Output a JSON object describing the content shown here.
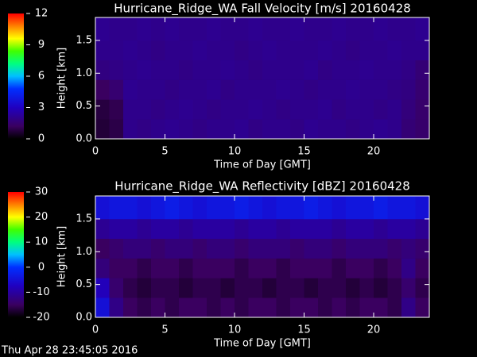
{
  "chart_data": [
    {
      "type": "heatmap",
      "title": "Hurricane_Ridge_WA Fall Velocity [m/s] 20160428",
      "xlabel": "Time of Day [GMT]",
      "ylabel": "Height [km]",
      "xlim": [
        0,
        24
      ],
      "xticks": [
        0,
        5,
        10,
        15,
        20
      ],
      "ylim": [
        0,
        1.85
      ],
      "yticks": [
        {
          "value": 0,
          "label": "0.0"
        },
        {
          "value": 0.5,
          "label": "0.5"
        },
        {
          "value": 1,
          "label": "1.0"
        },
        {
          "value": 1.5,
          "label": "1.5"
        }
      ],
      "clim": [
        0,
        12
      ],
      "cticks": [
        0,
        3,
        6,
        9,
        12
      ],
      "colormap": [
        {
          "at": 0,
          "color": "#000000"
        },
        {
          "at": 0.1,
          "color": "#3a0060"
        },
        {
          "at": 0.25,
          "color": "#2000c0"
        },
        {
          "at": 0.4,
          "color": "#0030ff"
        },
        {
          "at": 0.5,
          "color": "#00c0ff"
        },
        {
          "at": 0.6,
          "color": "#00ff80"
        },
        {
          "at": 0.7,
          "color": "#40ff00"
        },
        {
          "at": 0.8,
          "color": "#ffff00"
        },
        {
          "at": 0.9,
          "color": "#ff8000"
        },
        {
          "at": 1,
          "color": "#ff0000"
        }
      ],
      "x_edges": [
        0,
        1,
        2,
        3,
        4,
        5,
        6,
        7,
        8,
        9,
        10,
        11,
        12,
        13,
        14,
        15,
        16,
        17,
        18,
        19,
        20,
        21,
        22,
        23,
        24
      ],
      "y_edges": [
        0,
        0.3,
        0.6,
        0.9,
        1.2,
        1.5,
        1.85
      ],
      "z": [
        [
          0.7,
          0.9,
          2.0,
          1.9,
          2.0,
          2.1,
          2.0,
          1.9,
          2.0,
          2.0,
          2.1,
          1.9,
          2.0,
          2.0,
          1.9,
          2.1,
          2.0,
          2.0,
          1.9,
          2.0,
          2.1,
          2.0,
          1.6,
          1.4
        ],
        [
          0.8,
          1.0,
          2.0,
          2.0,
          1.9,
          2.0,
          2.1,
          2.0,
          1.9,
          2.0,
          2.0,
          2.1,
          2.0,
          1.9,
          2.0,
          2.0,
          2.1,
          1.9,
          2.0,
          2.0,
          1.9,
          2.0,
          1.7,
          1.4
        ],
        [
          1.2,
          1.5,
          2.1,
          2.0,
          2.0,
          1.9,
          2.0,
          2.0,
          2.1,
          1.9,
          2.0,
          2.0,
          2.0,
          2.1,
          2.0,
          1.9,
          2.0,
          2.0,
          2.1,
          2.0,
          2.0,
          1.9,
          1.8,
          1.5
        ],
        [
          1.8,
          1.9,
          2.0,
          2.1,
          2.0,
          2.0,
          1.9,
          2.0,
          2.0,
          2.1,
          2.0,
          1.9,
          2.0,
          2.0,
          2.0,
          2.1,
          1.9,
          2.0,
          2.0,
          2.1,
          2.0,
          2.0,
          1.9,
          1.6
        ],
        [
          2.0,
          2.0,
          2.1,
          2.0,
          1.9,
          2.0,
          2.0,
          2.1,
          2.0,
          2.0,
          1.9,
          2.0,
          2.1,
          2.0,
          2.0,
          2.0,
          2.1,
          2.0,
          1.9,
          2.0,
          2.0,
          2.1,
          2.0,
          2.0
        ],
        [
          2.1,
          2.0,
          2.0,
          2.1,
          2.0,
          2.1,
          2.0,
          2.0,
          2.1,
          2.0,
          2.0,
          2.1,
          2.0,
          2.0,
          2.1,
          2.0,
          2.0,
          2.1,
          2.0,
          2.0,
          2.1,
          2.0,
          2.0,
          2.1
        ]
      ]
    },
    {
      "type": "heatmap",
      "title": "Hurricane_Ridge_WA Reflectivity [dBZ] 20160428",
      "xlabel": "Time of Day [GMT]",
      "ylabel": "Height [km]",
      "xlim": [
        0,
        24
      ],
      "xticks": [
        0,
        5,
        10,
        15,
        20
      ],
      "ylim": [
        0,
        1.85
      ],
      "yticks": [
        {
          "value": 0,
          "label": "0.0"
        },
        {
          "value": 0.5,
          "label": "0.5"
        },
        {
          "value": 1,
          "label": "1.0"
        },
        {
          "value": 1.5,
          "label": "1.5"
        }
      ],
      "clim": [
        -20,
        30
      ],
      "cticks": [
        -20,
        -10,
        0,
        10,
        20,
        30
      ],
      "colormap": [
        {
          "at": 0,
          "color": "#000000"
        },
        {
          "at": 0.1,
          "color": "#3a0060"
        },
        {
          "at": 0.25,
          "color": "#2000c0"
        },
        {
          "at": 0.4,
          "color": "#0030ff"
        },
        {
          "at": 0.5,
          "color": "#00c0ff"
        },
        {
          "at": 0.6,
          "color": "#00ff80"
        },
        {
          "at": 0.7,
          "color": "#40ff00"
        },
        {
          "at": 0.8,
          "color": "#ffff00"
        },
        {
          "at": 0.9,
          "color": "#ff8000"
        },
        {
          "at": 1,
          "color": "#ff0000"
        }
      ],
      "x_edges": [
        0,
        1,
        2,
        3,
        4,
        5,
        6,
        7,
        8,
        9,
        10,
        11,
        12,
        13,
        14,
        15,
        16,
        17,
        18,
        19,
        20,
        21,
        22,
        23,
        24
      ],
      "y_edges": [
        0,
        0.3,
        0.6,
        0.9,
        1.2,
        1.5,
        1.85
      ],
      "z": [
        [
          -5,
          -12,
          -15,
          -16,
          -15,
          -16,
          -15,
          -15,
          -16,
          -15,
          -16,
          -15,
          -15,
          -16,
          -15,
          -15,
          -16,
          -15,
          -16,
          -15,
          -15,
          -16,
          -12,
          -15
        ],
        [
          -8,
          -14,
          -16,
          -17,
          -16,
          -16,
          -17,
          -16,
          -16,
          -17,
          -16,
          -16,
          -17,
          -16,
          -16,
          -17,
          -16,
          -16,
          -17,
          -16,
          -17,
          -16,
          -14,
          -16
        ],
        [
          -13,
          -15,
          -15,
          -16,
          -15,
          -15,
          -16,
          -15,
          -15,
          -15,
          -16,
          -15,
          -15,
          -16,
          -15,
          -15,
          -15,
          -16,
          -15,
          -15,
          -16,
          -15,
          -12,
          -15
        ],
        [
          -15,
          -14,
          -13,
          -13,
          -14,
          -13,
          -13,
          -14,
          -13,
          -13,
          -14,
          -13,
          -13,
          -13,
          -14,
          -13,
          -13,
          -14,
          -13,
          -13,
          -13,
          -14,
          -13,
          -14
        ],
        [
          -11,
          -10,
          -10,
          -11,
          -10,
          -10,
          -11,
          -10,
          -10,
          -10,
          -11,
          -10,
          -10,
          -11,
          -10,
          -10,
          -10,
          -11,
          -10,
          -10,
          -11,
          -10,
          -10,
          -11
        ],
        [
          -5,
          -4,
          -4,
          -5,
          -4,
          -3,
          -4,
          -5,
          -4,
          -4,
          -3,
          -4,
          -5,
          -4,
          -4,
          -3,
          -4,
          -5,
          -4,
          -4,
          -3,
          -4,
          -4,
          -5
        ]
      ]
    }
  ],
  "timestamp": "Thu Apr 28 23:45:05 2016"
}
